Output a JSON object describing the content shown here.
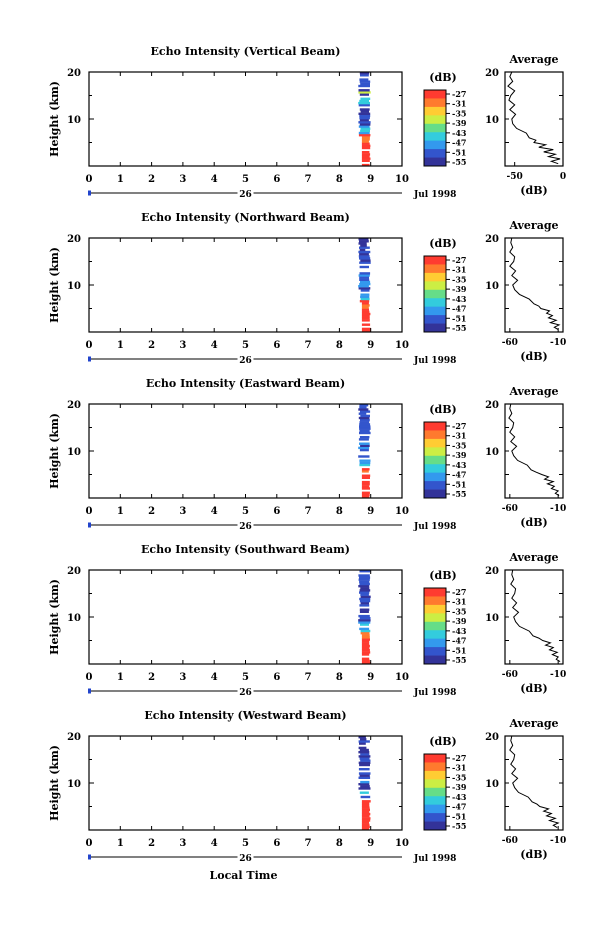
{
  "colorbar": {
    "unit_label": "(dB)",
    "ticks": [
      "-27",
      "-31",
      "-35",
      "-39",
      "-43",
      "-47",
      "-51",
      "-55"
    ],
    "colors": [
      "#ff3b30",
      "#ff7a2e",
      "#ffcc33",
      "#ccee44",
      "#66dd88",
      "#33ccdd",
      "#3399ee",
      "#3355cc",
      "#333399"
    ]
  },
  "x_axis": {
    "ticks": [
      "0",
      "1",
      "2",
      "3",
      "4",
      "5",
      "6",
      "7",
      "8",
      "9",
      "10"
    ],
    "day_label": "26",
    "date_label": "Jul 1998",
    "title": "Local Time"
  },
  "y_axis": {
    "label": "Height (km)",
    "ticks": [
      "10",
      "20"
    ],
    "ylim": [
      0,
      20
    ]
  },
  "average": {
    "title": "Average",
    "xlabel": "(dB)"
  },
  "chart_data": [
    {
      "type": "heatmap",
      "title": "Echo Intensity (Vertical Beam)",
      "x_range_hours": [
        0,
        10
      ],
      "y_range_km": [
        0,
        20
      ],
      "data_time_span_hours": [
        8.6,
        9.0
      ],
      "profile": {
        "type": "line",
        "title": "Average",
        "xlabel": "(dB)",
        "xticks": [
          "-50",
          "0"
        ],
        "xlim": [
          -60,
          0
        ],
        "height_km": [
          0.5,
          1,
          1.5,
          2,
          2.5,
          3,
          3.5,
          4,
          4.5,
          5,
          5.5,
          6,
          7,
          8,
          9,
          10,
          11,
          12,
          13,
          14,
          15,
          16,
          17,
          18,
          19,
          20
        ],
        "values_db": [
          -5,
          -12,
          -3,
          -15,
          -8,
          -20,
          -10,
          -25,
          -18,
          -30,
          -28,
          -35,
          -38,
          -48,
          -52,
          -53,
          -49,
          -55,
          -50,
          -56,
          -54,
          -50,
          -57,
          -52,
          -55,
          -53
        ]
      }
    },
    {
      "type": "heatmap",
      "title": "Echo Intensity (Northward Beam)",
      "x_range_hours": [
        0,
        10
      ],
      "y_range_km": [
        0,
        20
      ],
      "data_time_span_hours": [
        8.6,
        9.0
      ],
      "profile": {
        "type": "line",
        "title": "Average",
        "xlabel": "(dB)",
        "xticks": [
          "-60",
          "-10"
        ],
        "xlim": [
          -65,
          -5
        ],
        "height_km": [
          0.5,
          1,
          1.5,
          2,
          2.5,
          3,
          3.5,
          4,
          4.5,
          5,
          5.5,
          6,
          7,
          8,
          9,
          10,
          11,
          12,
          13,
          14,
          15,
          16,
          17,
          18,
          19,
          20
        ],
        "values_db": [
          -10,
          -14,
          -9,
          -18,
          -12,
          -20,
          -16,
          -22,
          -19,
          -28,
          -30,
          -35,
          -40,
          -50,
          -55,
          -57,
          -52,
          -58,
          -54,
          -60,
          -56,
          -55,
          -60,
          -57,
          -59,
          -58
        ]
      }
    },
    {
      "type": "heatmap",
      "title": "Echo Intensity (Eastward Beam)",
      "x_range_hours": [
        0,
        10
      ],
      "y_range_km": [
        0,
        20
      ],
      "data_time_span_hours": [
        8.6,
        9.0
      ],
      "profile": {
        "type": "line",
        "title": "Average",
        "xlabel": "(dB)",
        "xticks": [
          "-60",
          "-10"
        ],
        "xlim": [
          -65,
          -5
        ],
        "height_km": [
          0.5,
          1,
          1.5,
          2,
          2.5,
          3,
          3.5,
          4,
          4.5,
          5,
          5.5,
          6,
          7,
          8,
          9,
          10,
          11,
          12,
          13,
          14,
          15,
          16,
          17,
          18,
          19,
          20
        ],
        "values_db": [
          -9,
          -13,
          -10,
          -17,
          -14,
          -21,
          -15,
          -24,
          -20,
          -27,
          -33,
          -38,
          -42,
          -52,
          -56,
          -58,
          -53,
          -59,
          -55,
          -60,
          -57,
          -56,
          -61,
          -58,
          -60,
          -59
        ]
      }
    },
    {
      "type": "heatmap",
      "title": "Echo Intensity (Southward Beam)",
      "x_range_hours": [
        0,
        10
      ],
      "y_range_km": [
        0,
        20
      ],
      "data_time_span_hours": [
        8.6,
        9.0
      ],
      "profile": {
        "type": "line",
        "title": "Average",
        "xlabel": "(dB)",
        "xticks": [
          "-60",
          "-10"
        ],
        "xlim": [
          -65,
          -5
        ],
        "height_km": [
          0.5,
          1,
          1.5,
          2,
          2.5,
          3,
          3.5,
          4,
          4.5,
          5,
          5.5,
          6,
          7,
          8,
          9,
          10,
          11,
          12,
          13,
          14,
          15,
          16,
          17,
          18,
          19,
          20
        ],
        "values_db": [
          -8,
          -12,
          -10,
          -16,
          -11,
          -19,
          -15,
          -23,
          -18,
          -26,
          -30,
          -36,
          -40,
          -50,
          -54,
          -56,
          -51,
          -57,
          -53,
          -58,
          -55,
          -54,
          -59,
          -56,
          -58,
          -57
        ]
      }
    },
    {
      "type": "heatmap",
      "title": "Echo Intensity (Westward Beam)",
      "x_range_hours": [
        0,
        10
      ],
      "y_range_km": [
        0,
        20
      ],
      "data_time_span_hours": [
        8.6,
        9.0
      ],
      "profile": {
        "type": "line",
        "title": "Average",
        "xlabel": "(dB)",
        "xticks": [
          "-60",
          "-10"
        ],
        "xlim": [
          -65,
          -5
        ],
        "height_km": [
          0.5,
          1,
          1.5,
          2,
          2.5,
          3,
          3.5,
          4,
          4.5,
          5,
          5.5,
          6,
          7,
          8,
          9,
          10,
          11,
          12,
          13,
          14,
          15,
          16,
          17,
          18,
          19,
          20
        ],
        "values_db": [
          -11,
          -15,
          -10,
          -19,
          -13,
          -22,
          -17,
          -25,
          -20,
          -29,
          -32,
          -37,
          -41,
          -51,
          -55,
          -57,
          -52,
          -58,
          -54,
          -59,
          -56,
          -55,
          -60,
          -57,
          -59,
          -58
        ]
      }
    }
  ]
}
